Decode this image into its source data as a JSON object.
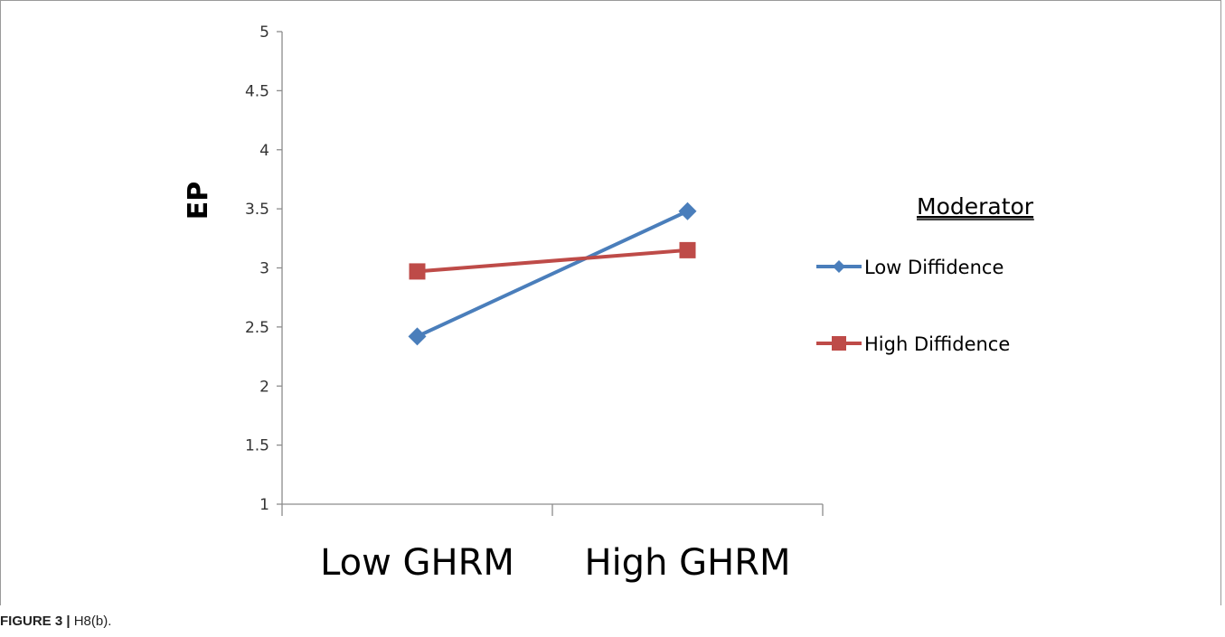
{
  "chart_data": {
    "type": "line",
    "categories": [
      "Low GHRM",
      "High GHRM"
    ],
    "series": [
      {
        "name": "Low Diffidence",
        "values": [
          2.42,
          3.48
        ],
        "color": "#4a7ebb",
        "marker": "diamond"
      },
      {
        "name": "High Diffidence",
        "values": [
          2.97,
          3.15
        ],
        "color": "#be4b48",
        "marker": "square"
      }
    ],
    "ylabel": "EP",
    "ylim": [
      1,
      5
    ],
    "yticks": [
      "1",
      "1.5",
      "2",
      "2.5",
      "3",
      "3.5",
      "4",
      "4.5",
      "5"
    ],
    "legend_title": "Moderator",
    "legend_position": "right",
    "grid": false
  },
  "caption": {
    "label": "FIGURE 3 |",
    "text": " H8(b)."
  }
}
